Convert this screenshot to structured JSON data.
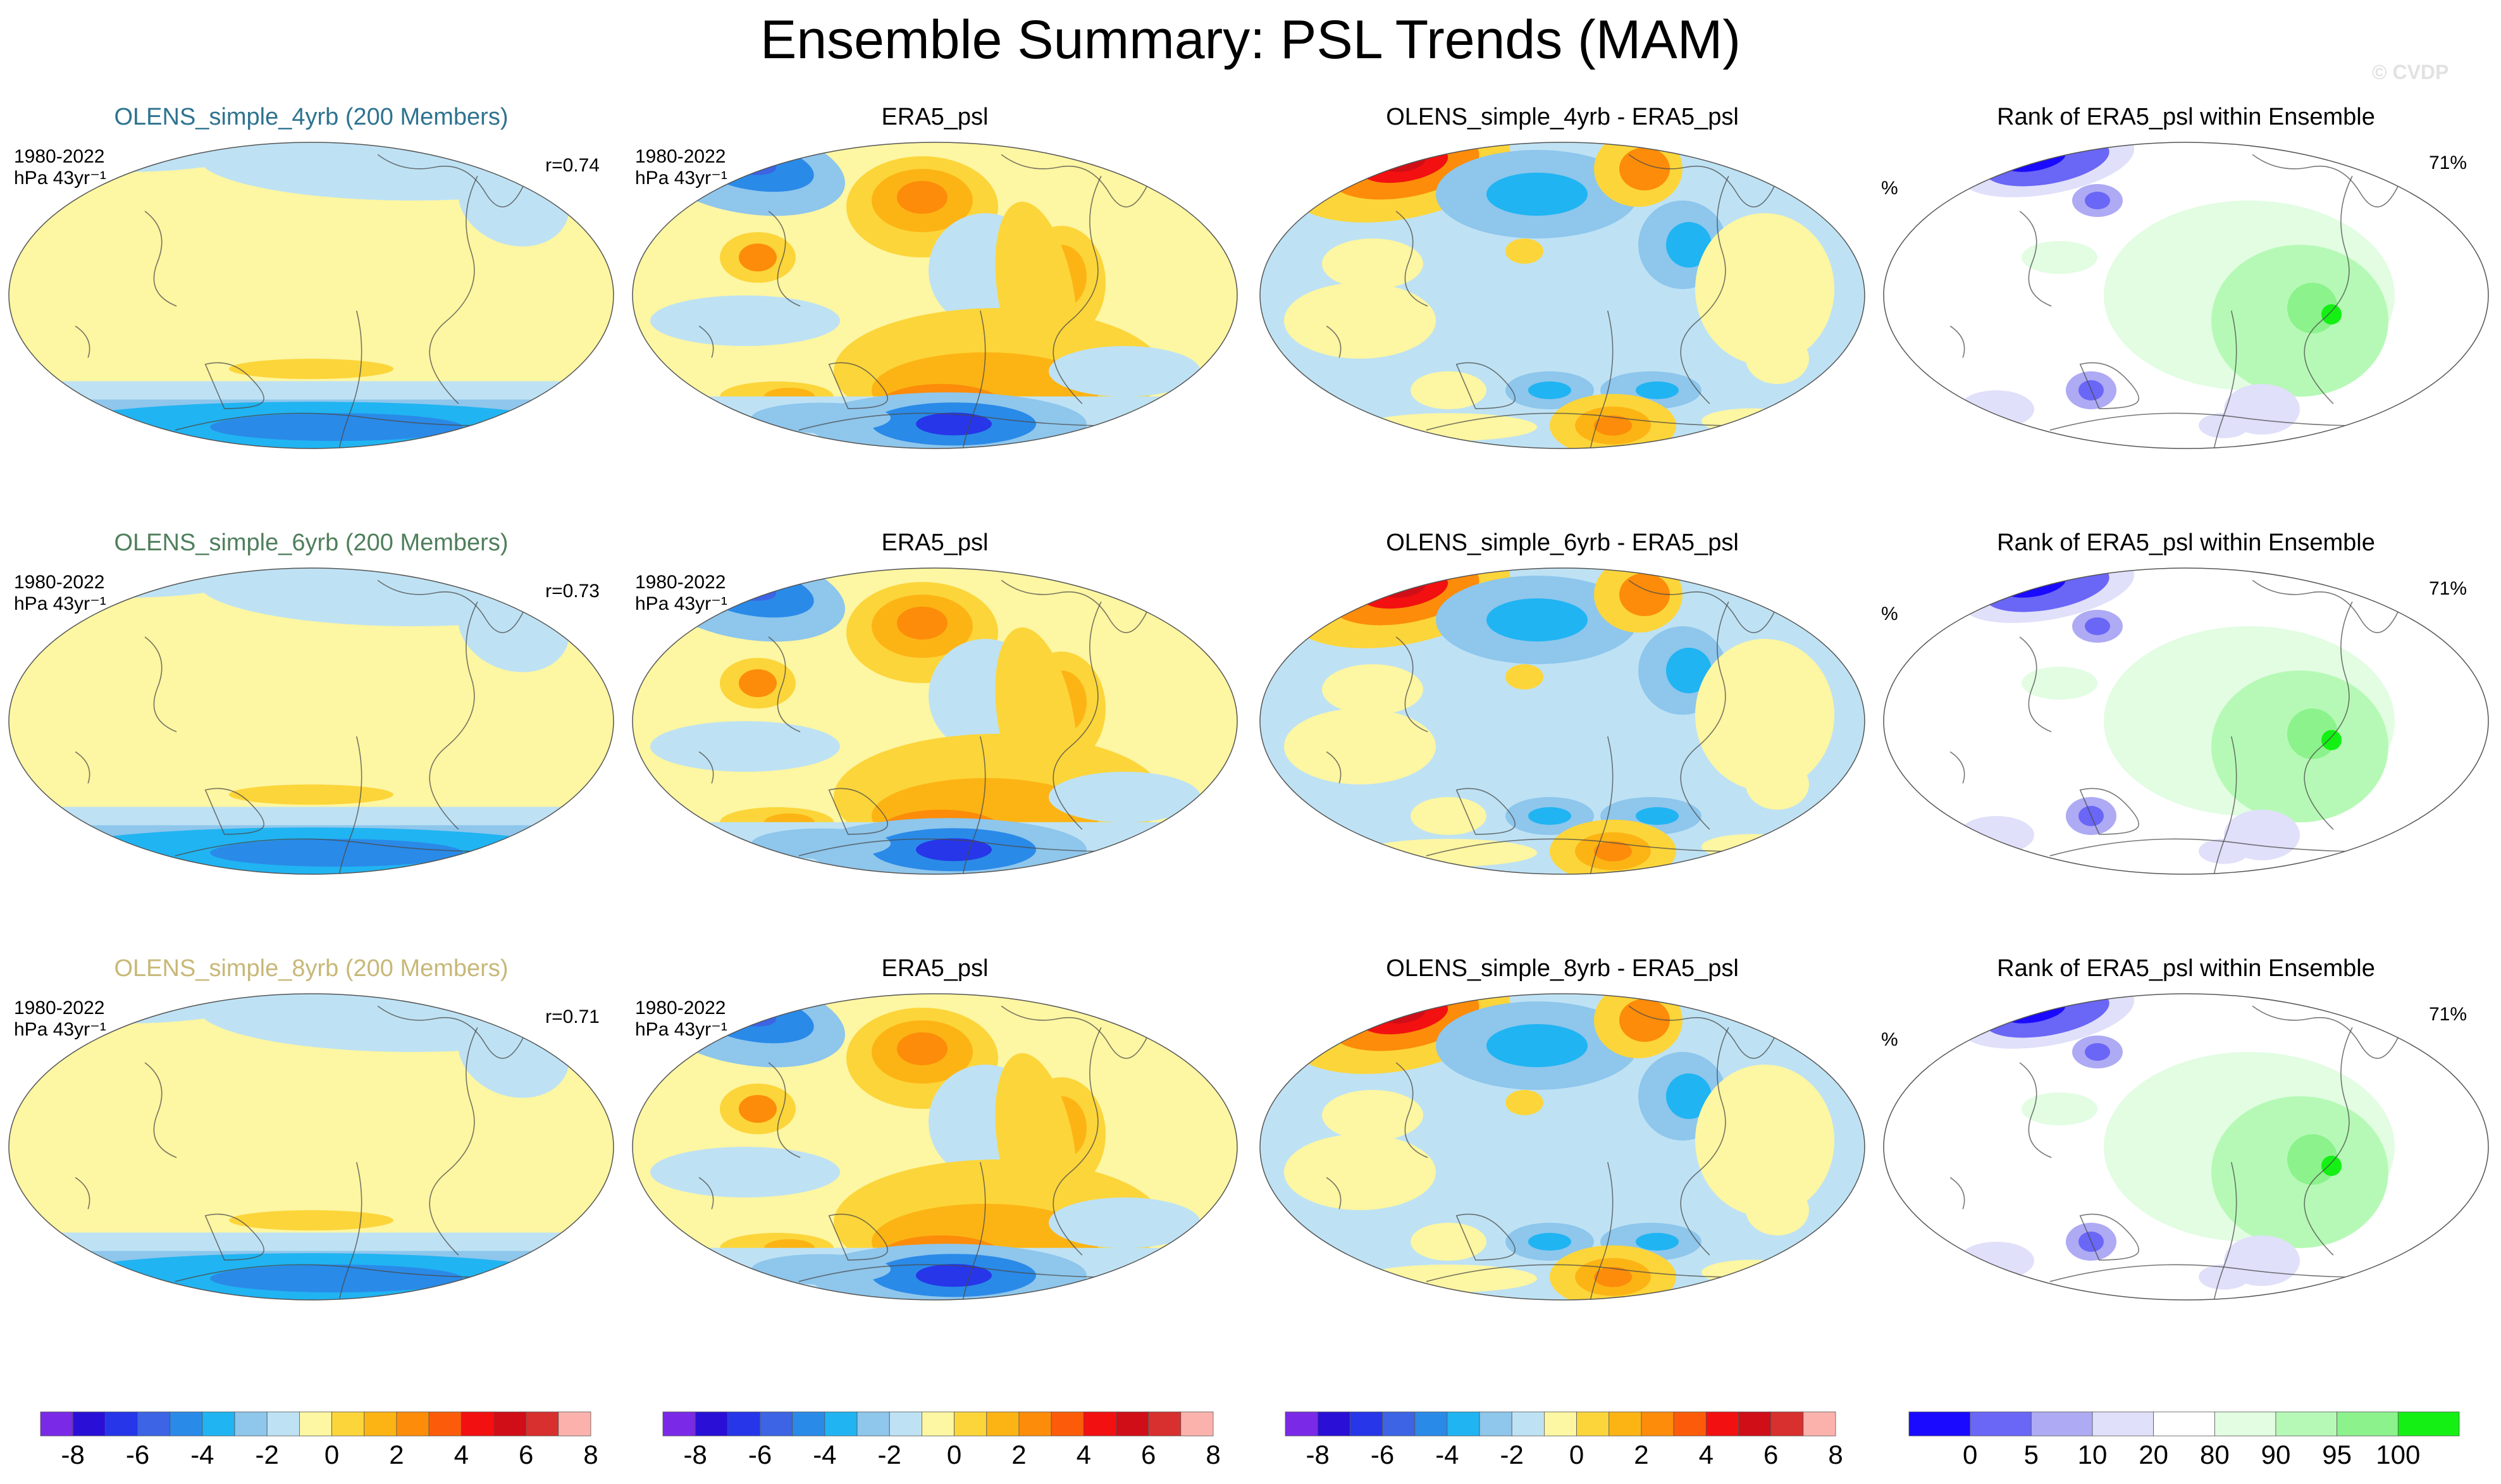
{
  "title": "Ensemble Summary: PSL Trends (MAM)",
  "copyright": "© CVDP",
  "chart_data": {
    "type": "map_panels",
    "period": "1980-2022",
    "units": "hPa 43yr⁻¹",
    "rows": [
      {
        "model_title": "OLENS_simple_4yrb (200 Members)",
        "model_title_color": "#2e7390",
        "r_label": "r=0.74",
        "obs_title": "ERA5_psl",
        "diff_title": "OLENS_simple_4yrb - ERA5_psl",
        "rank_title": "Rank of ERA5_psl within Ensemble",
        "rank_pct_label": "71%",
        "rank_unit": "%"
      },
      {
        "model_title": "OLENS_simple_6yrb (200 Members)",
        "model_title_color": "#4f7f5c",
        "r_label": "r=0.73",
        "obs_title": "ERA5_psl",
        "diff_title": "OLENS_simple_6yrb - ERA5_psl",
        "rank_title": "Rank of ERA5_psl within Ensemble",
        "rank_pct_label": "71%",
        "rank_unit": "%"
      },
      {
        "model_title": "OLENS_simple_8yrb (200 Members)",
        "model_title_color": "#c8b878",
        "r_label": "r=0.71",
        "obs_title": "ERA5_psl",
        "diff_title": "OLENS_simple_8yrb - ERA5_psl",
        "rank_title": "Rank of ERA5_psl within Ensemble",
        "rank_pct_label": "71%",
        "rank_unit": "%"
      }
    ],
    "trend_colorbar": {
      "colors": [
        "#7a2ae6",
        "#2a10d6",
        "#2636e8",
        "#3c64e4",
        "#2a8ae8",
        "#20b4f2",
        "#8ec6ec",
        "#bee2f4",
        "#fdf6a2",
        "#fcd53a",
        "#fcb414",
        "#fc8c0a",
        "#fc5c0a",
        "#f21010",
        "#d00e18",
        "#d8302e",
        "#fcb2ac"
      ],
      "tick_labels": [
        "-8",
        "-6",
        "-4",
        "-2",
        "0",
        "2",
        "4",
        "6",
        "8"
      ]
    },
    "rank_colorbar": {
      "colors": [
        "#1a0aff",
        "#6a66f6",
        "#aeaaf4",
        "#e0e0fa",
        "#ffffff",
        "#e2fde2",
        "#b6f9b6",
        "#8cf28c",
        "#14f014"
      ],
      "tick_labels": [
        "0",
        "5",
        "10",
        "20",
        "80",
        "90",
        "95",
        "100"
      ]
    }
  }
}
